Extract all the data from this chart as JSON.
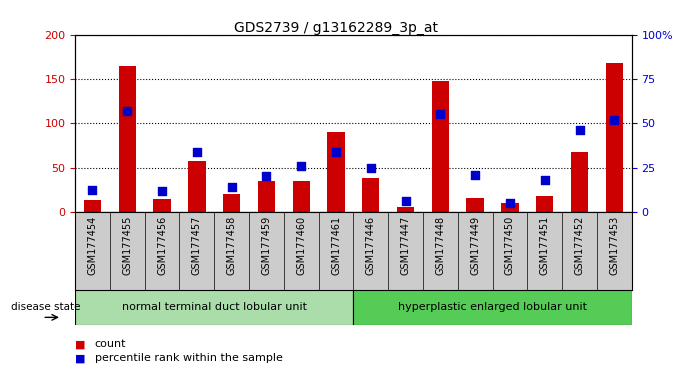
{
  "title": "GDS2739 / g13162289_3p_at",
  "categories": [
    "GSM177454",
    "GSM177455",
    "GSM177456",
    "GSM177457",
    "GSM177458",
    "GSM177459",
    "GSM177460",
    "GSM177461",
    "GSM177446",
    "GSM177447",
    "GSM177448",
    "GSM177449",
    "GSM177450",
    "GSM177451",
    "GSM177452",
    "GSM177453"
  ],
  "count_values": [
    13,
    165,
    15,
    57,
    20,
    35,
    35,
    90,
    38,
    5,
    148,
    16,
    10,
    18,
    67,
    168
  ],
  "percentile_values": [
    12.5,
    57,
    12,
    34,
    14,
    20,
    26,
    34,
    25,
    6,
    55,
    21,
    5,
    18,
    46,
    52
  ],
  "group1_label": "normal terminal duct lobular unit",
  "group2_label": "hyperplastic enlarged lobular unit",
  "group1_count": 8,
  "group2_count": 8,
  "disease_state_label": "disease state",
  "legend_count_label": "count",
  "legend_percentile_label": "percentile rank within the sample",
  "ylim_left": [
    0,
    200
  ],
  "ylim_right": [
    0,
    100
  ],
  "yticks_left": [
    0,
    50,
    100,
    150,
    200
  ],
  "yticks_right": [
    0,
    25,
    50,
    75,
    100
  ],
  "ytick_labels_right": [
    "0",
    "25",
    "50",
    "75",
    "100%"
  ],
  "bar_color": "#cc0000",
  "square_color": "#0000cc",
  "group1_bg": "#aaddaa",
  "group2_bg": "#55cc55",
  "tick_area_bg": "#cccccc",
  "bar_width": 0.5,
  "square_size": 40
}
